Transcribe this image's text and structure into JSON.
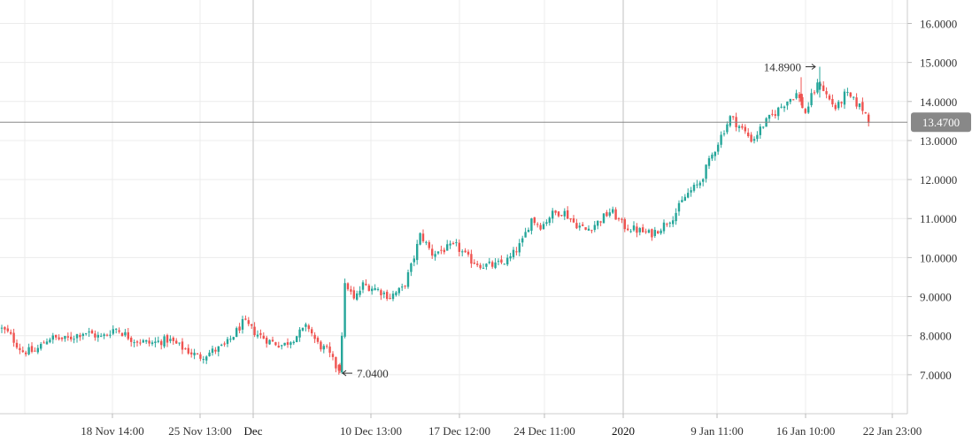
{
  "chart_data": {
    "type": "candlestick",
    "x_tick_labels": [
      "18 Nov 14:00",
      "25 Nov 13:00",
      "Dec",
      "10 Dec 13:00",
      "17 Dec 12:00",
      "24 Dec 11:00",
      "2020",
      "9 Jan 11:00",
      "16 Jan 10:00",
      "22 Jan 23:00"
    ],
    "major_x_ticks": [
      "Dec",
      "2020"
    ],
    "y_ticks": [
      "7.0000",
      "8.0000",
      "9.0000",
      "10.0000",
      "11.0000",
      "12.0000",
      "13.0000",
      "14.0000",
      "15.0000",
      "16.0000"
    ],
    "ylim": [
      6.0,
      16.6
    ],
    "annotations": {
      "max": {
        "label": "14.8900",
        "value": 14.89
      },
      "min": {
        "label": "7.0400",
        "value": 7.04
      }
    },
    "current_price": {
      "label": "13.4700",
      "value": 13.47
    },
    "colors": {
      "up": "#26a69a",
      "down": "#ef5350",
      "grid": "#ececec",
      "price_line": "#888888",
      "price_tag": "#888888"
    },
    "series": [
      {
        "anchors": [
          [
            0,
            8.2
          ],
          [
            10,
            8.05
          ],
          [
            25,
            7.6
          ],
          [
            40,
            7.6
          ],
          [
            55,
            7.95
          ],
          [
            75,
            7.9
          ],
          [
            95,
            8.1
          ],
          [
            115,
            7.95
          ],
          [
            130,
            8.2
          ],
          [
            150,
            7.9
          ],
          [
            170,
            7.8
          ],
          [
            190,
            7.9
          ],
          [
            205,
            7.7
          ],
          [
            225,
            7.45
          ],
          [
            240,
            7.6
          ],
          [
            255,
            7.75
          ],
          [
            275,
            8.35
          ],
          [
            290,
            8.05
          ],
          [
            305,
            7.85
          ],
          [
            320,
            7.75
          ],
          [
            335,
            8.0
          ],
          [
            348,
            8.25
          ],
          [
            358,
            7.8
          ],
          [
            370,
            7.6
          ],
          [
            382,
            7.1
          ],
          [
            386,
            8.0
          ],
          [
            390,
            9.4
          ],
          [
            400,
            8.9
          ],
          [
            410,
            9.3
          ],
          [
            425,
            9.2
          ],
          [
            440,
            9.0
          ],
          [
            455,
            9.2
          ],
          [
            465,
            9.8
          ],
          [
            475,
            10.6
          ],
          [
            488,
            10.1
          ],
          [
            500,
            10.2
          ],
          [
            515,
            10.3
          ],
          [
            530,
            9.95
          ],
          [
            545,
            9.8
          ],
          [
            560,
            9.8
          ],
          [
            575,
            9.95
          ],
          [
            590,
            10.4
          ],
          [
            600,
            11.0
          ],
          [
            612,
            10.8
          ],
          [
            622,
            11.1
          ],
          [
            636,
            11.2
          ],
          [
            648,
            10.9
          ],
          [
            662,
            10.7
          ],
          [
            675,
            10.9
          ],
          [
            690,
            11.2
          ],
          [
            705,
            10.8
          ],
          [
            720,
            10.7
          ],
          [
            735,
            10.6
          ],
          [
            748,
            10.8
          ],
          [
            762,
            11.1
          ],
          [
            775,
            11.6
          ],
          [
            790,
            11.9
          ],
          [
            800,
            12.4
          ],
          [
            812,
            13.0
          ],
          [
            825,
            13.6
          ],
          [
            838,
            13.3
          ],
          [
            850,
            13.0
          ],
          [
            862,
            13.4
          ],
          [
            875,
            13.7
          ],
          [
            888,
            14.0
          ],
          [
            900,
            14.2
          ],
          [
            910,
            13.7
          ],
          [
            918,
            14.2
          ],
          [
            926,
            14.5
          ],
          [
            935,
            14.1
          ],
          [
            945,
            13.8
          ],
          [
            955,
            14.2
          ],
          [
            965,
            14.0
          ],
          [
            975,
            13.8
          ],
          [
            983,
            13.47
          ]
        ]
      }
    ]
  }
}
